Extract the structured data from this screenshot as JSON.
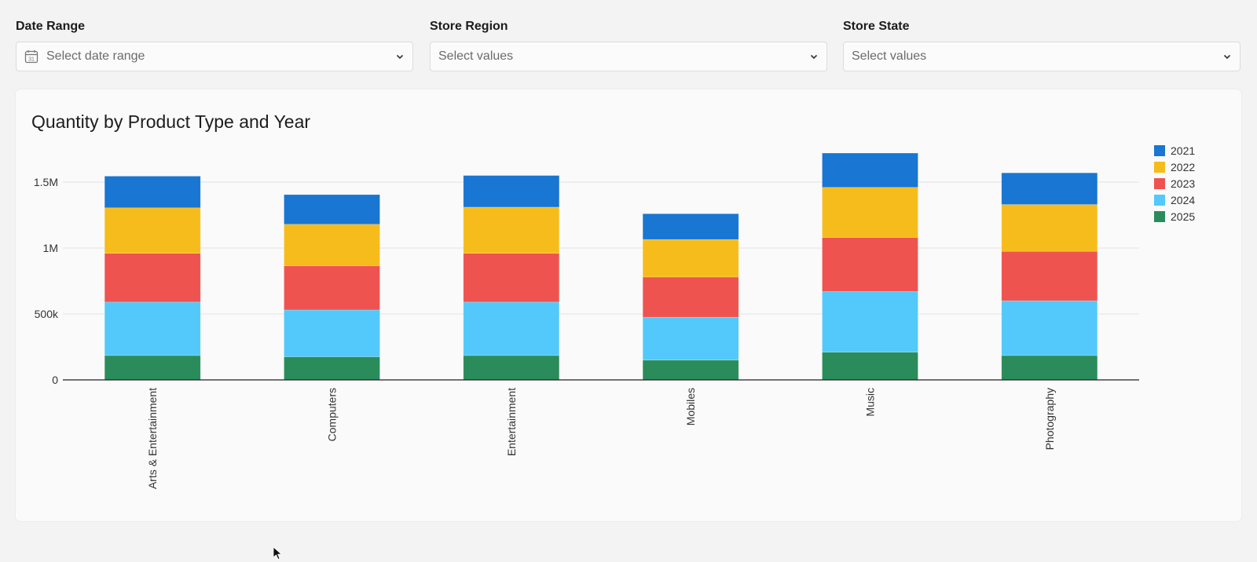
{
  "filters": [
    {
      "label": "Date Range",
      "placeholder": "Select date range",
      "icon": "calendar-icon"
    },
    {
      "label": "Store Region",
      "placeholder": "Select values"
    },
    {
      "label": "Store State",
      "placeholder": "Select values"
    }
  ],
  "chart_data": {
    "type": "bar",
    "stacked": true,
    "title": "Quantity by Product Type and Year",
    "xlabel": "",
    "ylabel": "",
    "categories": [
      "Arts & Entertainment",
      "Computers",
      "Entertainment",
      "Mobiles",
      "Music",
      "Photography"
    ],
    "ylim": [
      0,
      1750000
    ],
    "yticks": [
      {
        "value": 0,
        "label": "0"
      },
      {
        "value": 500000,
        "label": "500k"
      },
      {
        "value": 1000000,
        "label": "1M"
      },
      {
        "value": 1500000,
        "label": "1.5M"
      }
    ],
    "grid": true,
    "legend_position": "right",
    "series": [
      {
        "name": "2025",
        "color": "#2a8c5a",
        "values": [
          185000,
          175000,
          185000,
          150000,
          210000,
          185000
        ]
      },
      {
        "name": "2024",
        "color": "#52c9fa",
        "values": [
          405000,
          355000,
          405000,
          325000,
          460000,
          415000
        ]
      },
      {
        "name": "2023",
        "color": "#ef5350",
        "values": [
          370000,
          335000,
          370000,
          305000,
          410000,
          375000
        ]
      },
      {
        "name": "2022",
        "color": "#f6bc1c",
        "values": [
          345000,
          315000,
          350000,
          285000,
          380000,
          355000
        ]
      },
      {
        "name": "2021",
        "color": "#1976d2",
        "values": [
          240000,
          225000,
          240000,
          195000,
          260000,
          240000
        ]
      }
    ],
    "legend_order": [
      "2021",
      "2022",
      "2023",
      "2024",
      "2025"
    ]
  }
}
